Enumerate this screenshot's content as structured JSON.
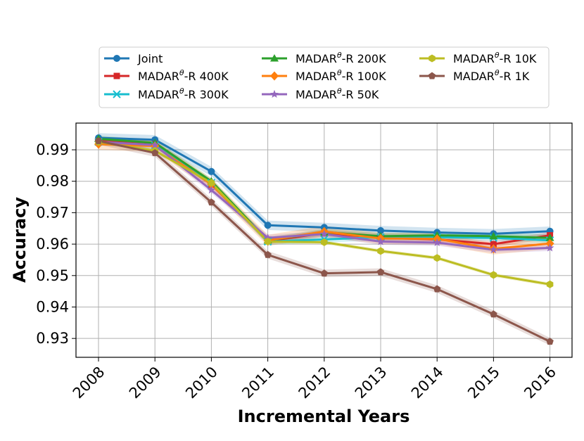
{
  "chart_data": {
    "type": "line",
    "xlabel": "Incremental Years",
    "ylabel": "Accuracy",
    "x": [
      "2008",
      "2009",
      "2010",
      "2011",
      "2012",
      "2013",
      "2014",
      "2015",
      "2016"
    ],
    "ylim": [
      0.924,
      0.9985
    ],
    "yticks": [
      "0.93",
      "0.94",
      "0.95",
      "0.96",
      "0.97",
      "0.98",
      "0.99"
    ],
    "grid": true,
    "legend": "top",
    "series": [
      {
        "name": "Joint",
        "label_prefix": "Joint",
        "label_suffix": "",
        "color": "#1f77b4",
        "marker": "circle",
        "values": [
          0.9938,
          0.9932,
          0.9831,
          0.966,
          0.9653,
          0.9643,
          0.9637,
          0.9633,
          0.9641
        ],
        "band": 0.0015
      },
      {
        "name": "MADARθ-R 400K",
        "label_prefix": "MADAR",
        "label_sup": "θ",
        "label_suffix": "-R 400K",
        "color": "#d62728",
        "marker": "square",
        "values": [
          0.9928,
          0.9918,
          0.979,
          0.961,
          0.9635,
          0.962,
          0.9615,
          0.96,
          0.9628
        ],
        "band": 0.001
      },
      {
        "name": "MADARθ-R 300K",
        "label_prefix": "MADAR",
        "label_sup": "θ",
        "label_suffix": "-R 300K",
        "color": "#17becf",
        "marker": "x",
        "values": [
          0.9925,
          0.9915,
          0.9795,
          0.9608,
          0.9615,
          0.9622,
          0.9622,
          0.962,
          0.9612
        ],
        "band": 0.001
      },
      {
        "name": "MADARθ-R 200K",
        "label_prefix": "MADAR",
        "label_sup": "θ",
        "label_suffix": "-R 200K",
        "color": "#2ca02c",
        "marker": "triangle",
        "values": [
          0.9935,
          0.9922,
          0.98,
          0.9612,
          0.9638,
          0.9625,
          0.9628,
          0.9625,
          0.962
        ],
        "band": 0.001
      },
      {
        "name": "MADARθ-R 100K",
        "label_prefix": "MADAR",
        "label_sup": "θ",
        "label_suffix": "-R 100K",
        "color": "#ff7f0e",
        "marker": "diamond",
        "values": [
          0.9918,
          0.9912,
          0.979,
          0.9612,
          0.964,
          0.9618,
          0.9617,
          0.9585,
          0.9602
        ],
        "band": 0.0018
      },
      {
        "name": "MADARθ-R 50K",
        "label_prefix": "MADAR",
        "label_sup": "θ",
        "label_suffix": "-R 50K",
        "color": "#9467bd",
        "marker": "star",
        "values": [
          0.9925,
          0.9915,
          0.9772,
          0.962,
          0.9632,
          0.9608,
          0.9605,
          0.9582,
          0.9588
        ],
        "band": 0.001
      },
      {
        "name": "MADARθ-R 10K",
        "label_prefix": "MADAR",
        "label_sup": "θ",
        "label_suffix": "-R 10K",
        "color": "#bcbd22",
        "marker": "hexagon",
        "values": [
          0.9925,
          0.9897,
          0.9795,
          0.9608,
          0.9606,
          0.9578,
          0.9556,
          0.9502,
          0.9472
        ],
        "band": 0.0006
      },
      {
        "name": "MADARθ-R 1K",
        "label_prefix": "MADAR",
        "label_sup": "θ",
        "label_suffix": "-R 1K",
        "color": "#8c564b",
        "marker": "pentagon",
        "values": [
          0.9928,
          0.989,
          0.9733,
          0.9566,
          0.9507,
          0.9511,
          0.9457,
          0.9377,
          0.929
        ],
        "band": 0.0012
      }
    ]
  }
}
